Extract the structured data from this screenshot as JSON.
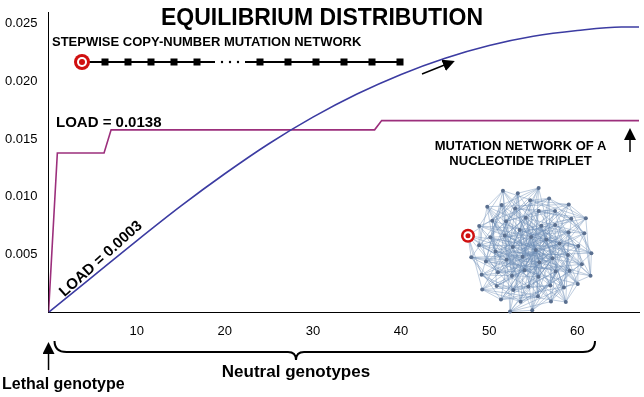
{
  "chart_data": {
    "type": "line",
    "title": "EQUILIBRIUM DISTRIBUTION",
    "xlim": [
      0,
      67
    ],
    "xticks": [
      10,
      20,
      30,
      40,
      50,
      60
    ],
    "ylim": [
      0,
      0.026
    ],
    "yticks": [
      0.005,
      {
        "value": 0.01,
        "label": "0.010"
      },
      0.015,
      {
        "value": 0.02,
        "label": "0.020"
      },
      0.025
    ],
    "grid": false,
    "annotations": {
      "lethal": "Lethal genotype",
      "neutral": "Neutral genotypes"
    },
    "series": [
      {
        "color": "#3c3ca2",
        "line_style": "smooth",
        "marker": "none",
        "annotation": "LOAD = 0.0003",
        "network": "STEPWISE COPY-NUMBER MUTATION NETWORK",
        "x": [
          0,
          5,
          10,
          15,
          20,
          25,
          30,
          35,
          40,
          45,
          50,
          55,
          60,
          65,
          67
        ],
        "values": [
          0,
          0.0031,
          0.0062,
          0.0092,
          0.012,
          0.0146,
          0.0169,
          0.0189,
          0.0206,
          0.022,
          0.0231,
          0.0239,
          0.0244,
          0.0247,
          0.0247
        ]
      },
      {
        "color": "#9c2f7c",
        "line_style": "solid",
        "marker": "none",
        "annotation": "LOAD = 0.0138",
        "network": "MUTATION NETWORK OF A NUCLEOTIDE TRIPLET",
        "x": [
          0,
          1,
          6.3,
          7.1,
          37,
          37.8,
          67
        ],
        "values": [
          0,
          0.0138,
          0.0138,
          0.0158,
          0.0158,
          0.0166,
          0.0166
        ]
      }
    ]
  }
}
